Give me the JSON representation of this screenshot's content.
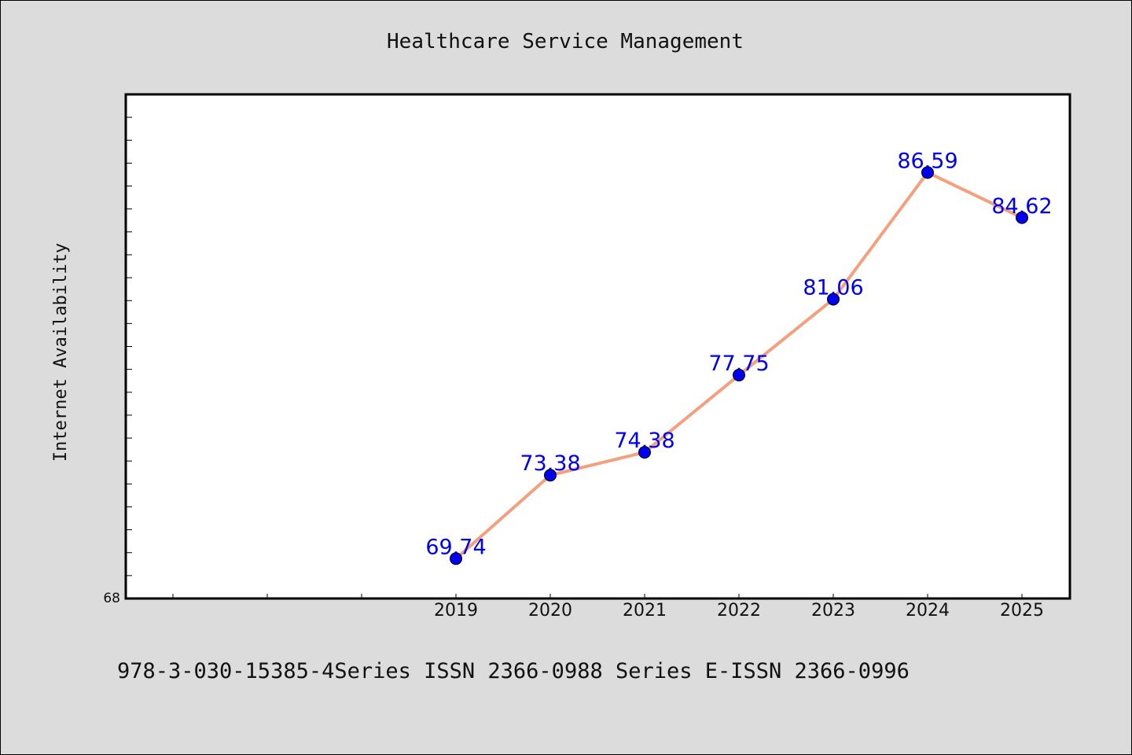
{
  "chart_data": {
    "type": "line",
    "title": "Healthcare Service Management",
    "xlabel": "",
    "ylabel": "Internet Availability",
    "categories": [
      "2019",
      "2020",
      "2021",
      "2022",
      "2023",
      "2024",
      "2025"
    ],
    "series": [
      {
        "values": [
          69.74,
          73.38,
          74.38,
          77.75,
          81.06,
          86.59,
          84.62
        ],
        "labels": [
          "69.74",
          "73.38",
          "74.38",
          "77.75",
          "81.06",
          "86.59",
          "84.62"
        ]
      }
    ],
    "ylim": [
      68,
      90
    ],
    "y_tick_labels": [
      "68"
    ],
    "grid": false,
    "legend": "none",
    "colors": {
      "line": "#f4a07e",
      "marker": "#0000ee",
      "data_label": "#0000ee",
      "plot_background": "#ffffff",
      "page_background": "#dcdcdc"
    }
  },
  "footer": {
    "text": "978-3-030-15385-4Series ISSN 2366-0988 Series E-ISSN 2366-0996"
  }
}
